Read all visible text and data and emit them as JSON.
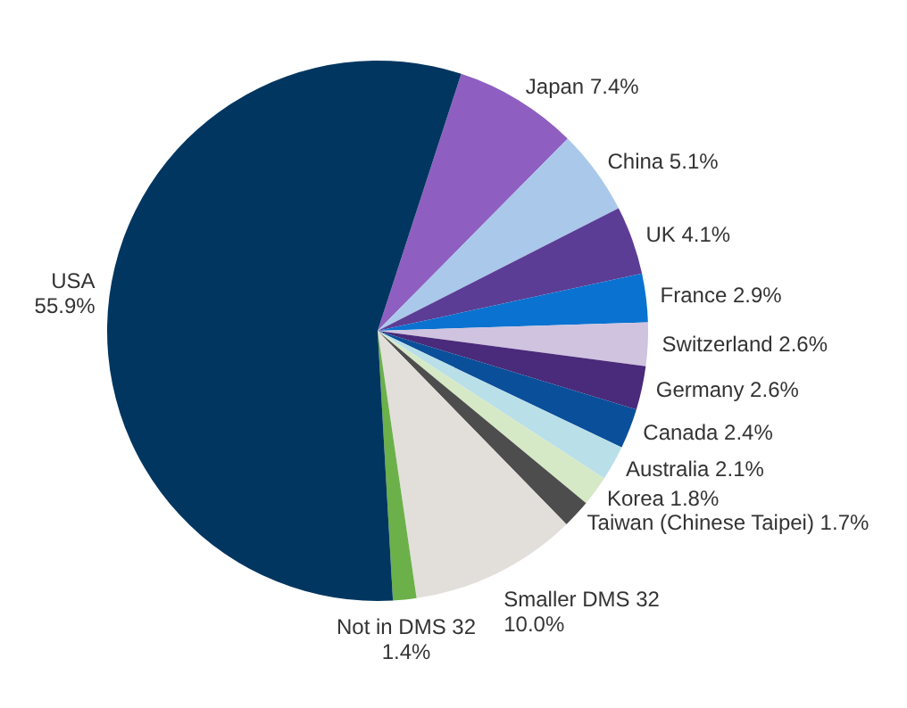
{
  "chart_data": {
    "type": "pie",
    "categories": [
      "Japan",
      "China",
      "UK",
      "France",
      "Switzerland",
      "Germany",
      "Canada",
      "Australia",
      "Korea",
      "Taiwan (Chinese Taipei)",
      "Smaller DMS 32",
      "Not in DMS 32",
      "USA"
    ],
    "values": [
      7.4,
      5.1,
      4.1,
      2.9,
      2.6,
      2.6,
      2.4,
      2.1,
      1.8,
      1.7,
      10.0,
      1.4,
      55.9
    ],
    "colors": [
      "#8e5fc0",
      "#aac8ea",
      "#5c3d96",
      "#0a72d0",
      "#cfc3e0",
      "#4a2a7a",
      "#0a4f9a",
      "#b9dfe9",
      "#d6e9c6",
      "#4d4d4d",
      "#e2dfda",
      "#6cb04a",
      "#003660"
    ],
    "value_labels": [
      "7.4%",
      "5.1%",
      "4.1%",
      "2.9%",
      "2.6%",
      "2.6%",
      "2.4%",
      "2.1%",
      "1.8%",
      "1.7%",
      "10.0%",
      "1.4%",
      "55.9%"
    ],
    "legend": false
  }
}
